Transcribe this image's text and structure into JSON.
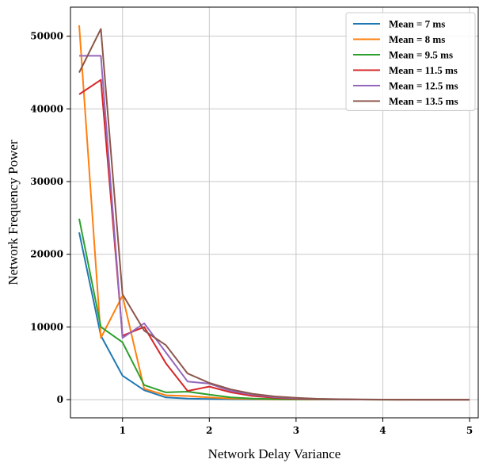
{
  "chart_data": {
    "type": "line",
    "xlabel": "Network Delay Variance",
    "ylabel": "Network Frequency Power",
    "xlim": [
      0.4,
      5.1
    ],
    "ylim": [
      -2500,
      54000
    ],
    "x_ticks": [
      1,
      2,
      3,
      4,
      5
    ],
    "y_ticks": [
      0,
      10000,
      20000,
      30000,
      40000,
      50000
    ],
    "grid": true,
    "legend_position": "top-right",
    "x": [
      0.5,
      0.75,
      1.0,
      1.25,
      1.5,
      1.75,
      2.0,
      2.25,
      2.5,
      2.75,
      3.0,
      3.25,
      3.5,
      3.75,
      4.0,
      4.25,
      4.5,
      4.75,
      5.0
    ],
    "series": [
      {
        "name": "Mean = 7 ms",
        "color": "#1f77b4",
        "values": [
          23000,
          8800,
          3300,
          1300,
          300,
          150,
          80,
          50,
          30,
          20,
          10,
          10,
          5,
          5,
          0,
          0,
          0,
          0,
          0
        ]
      },
      {
        "name": "Mean = 8 ms",
        "color": "#ff7f0e",
        "values": [
          51500,
          8500,
          14300,
          1500,
          600,
          500,
          300,
          150,
          80,
          40,
          20,
          10,
          5,
          5,
          0,
          0,
          0,
          0,
          0
        ]
      },
      {
        "name": "Mean = 9.5 ms",
        "color": "#2ca02c",
        "values": [
          24900,
          10000,
          7900,
          2000,
          1000,
          1100,
          700,
          300,
          150,
          80,
          40,
          20,
          10,
          5,
          0,
          0,
          0,
          0,
          0
        ]
      },
      {
        "name": "Mean = 11.5 ms",
        "color": "#d62728",
        "values": [
          42000,
          44000,
          8800,
          10000,
          5000,
          1200,
          1800,
          1000,
          500,
          250,
          120,
          60,
          30,
          10,
          5,
          0,
          0,
          0,
          0
        ]
      },
      {
        "name": "Mean = 12.5 ms",
        "color": "#9467bd",
        "values": [
          47300,
          47300,
          8500,
          10500,
          6500,
          2500,
          2200,
          1200,
          700,
          350,
          180,
          80,
          40,
          15,
          5,
          0,
          0,
          0,
          0
        ]
      },
      {
        "name": "Mean = 13.5 ms",
        "color": "#8c564b",
        "values": [
          45000,
          51000,
          14500,
          9500,
          7500,
          3600,
          2300,
          1400,
          800,
          450,
          250,
          120,
          60,
          25,
          10,
          5,
          0,
          0,
          0
        ]
      }
    ]
  }
}
